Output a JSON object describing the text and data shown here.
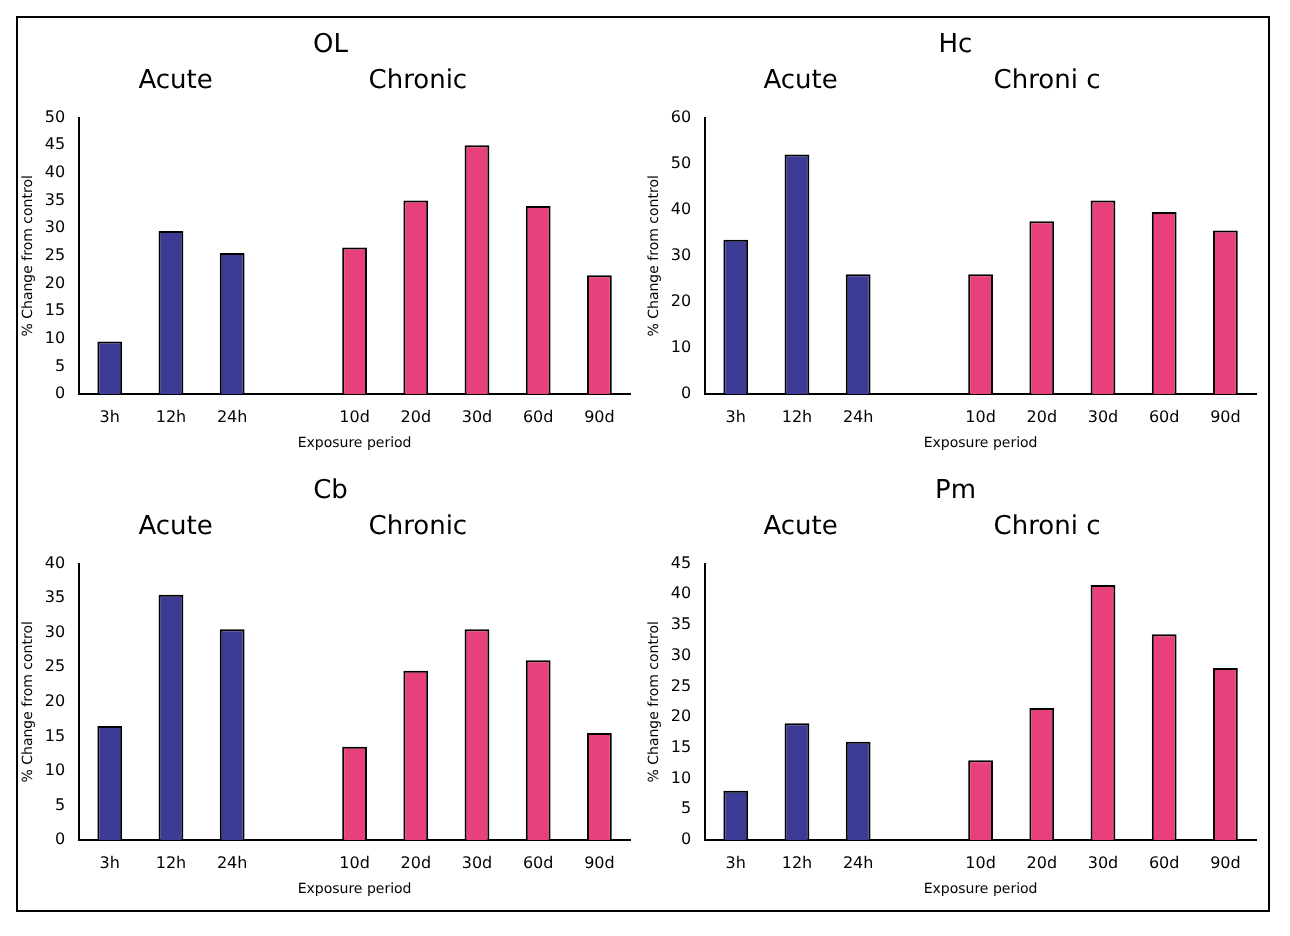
{
  "chart_data": [
    {
      "type": "bar",
      "title": "OL",
      "annotations": [
        "Acute",
        "Chronic"
      ],
      "xlabel": "Exposure period",
      "ylabel": "% Change from control",
      "categories": [
        "3h",
        "12h",
        "24h",
        null,
        "10d",
        "20d",
        "30d",
        "60d",
        "90d"
      ],
      "values": [
        9.5,
        29.5,
        25.5,
        null,
        26.5,
        35,
        45,
        34,
        21.5
      ],
      "colors": [
        "#3c3c96",
        "#3c3c96",
        "#3c3c96",
        "#e8407c",
        "#e8407c",
        "#e8407c",
        "#e8407c",
        "#e8407c",
        "#e8407c"
      ],
      "ylim": [
        0,
        50
      ],
      "yticks": [
        0,
        5,
        10,
        15,
        20,
        25,
        30,
        35,
        40,
        45,
        50
      ],
      "grid": false,
      "legend": false
    },
    {
      "type": "bar",
      "title": "Hc",
      "annotations": [
        "Acute",
        "Chroni c"
      ],
      "xlabel": "Exposure period",
      "ylabel": "% Change from control",
      "categories": [
        "3h",
        "12h",
        "24h",
        null,
        "10d",
        "20d",
        "30d",
        "60d",
        "90d"
      ],
      "values": [
        33.5,
        52,
        26,
        null,
        26,
        37.5,
        42,
        39.5,
        35.5
      ],
      "colors": [
        "#3c3c96",
        "#3c3c96",
        "#3c3c96",
        "#e8407c",
        "#e8407c",
        "#e8407c",
        "#e8407c",
        "#e8407c",
        "#e8407c"
      ],
      "ylim": [
        0,
        60
      ],
      "yticks": [
        0,
        10,
        20,
        30,
        40,
        50,
        60
      ],
      "grid": false,
      "legend": false
    },
    {
      "type": "bar",
      "title": "Cb",
      "annotations": [
        "Acute",
        "Chronic"
      ],
      "xlabel": "Exposure period",
      "ylabel": "% Change from control",
      "categories": [
        "3h",
        "12h",
        "24h",
        null,
        "10d",
        "20d",
        "30d",
        "60d",
        "90d"
      ],
      "values": [
        16.5,
        35.5,
        30.5,
        null,
        13.5,
        24.5,
        30.5,
        26,
        15.5
      ],
      "colors": [
        "#3c3c96",
        "#3c3c96",
        "#3c3c96",
        "#e8407c",
        "#e8407c",
        "#e8407c",
        "#e8407c",
        "#e8407c",
        "#e8407c"
      ],
      "ylim": [
        0,
        40
      ],
      "yticks": [
        0,
        5,
        10,
        15,
        20,
        25,
        30,
        35,
        40
      ],
      "grid": false,
      "legend": false
    },
    {
      "type": "bar",
      "title": "Pm",
      "annotations": [
        "Acute",
        "Chroni c"
      ],
      "xlabel": "Exposure period",
      "ylabel": "% Change from control",
      "categories": [
        "3h",
        "12h",
        "24h",
        null,
        "10d",
        "20d",
        "30d",
        "60d",
        "90d"
      ],
      "values": [
        8,
        19,
        16,
        null,
        13,
        21.5,
        41.5,
        33.5,
        28
      ],
      "colors": [
        "#3c3c96",
        "#3c3c96",
        "#3c3c96",
        "#e8407c",
        "#e8407c",
        "#e8407c",
        "#e8407c",
        "#e8407c",
        "#e8407c"
      ],
      "ylim": [
        0,
        45
      ],
      "yticks": [
        0,
        5,
        10,
        15,
        20,
        25,
        30,
        35,
        40,
        45
      ],
      "grid": false,
      "legend": false
    }
  ]
}
